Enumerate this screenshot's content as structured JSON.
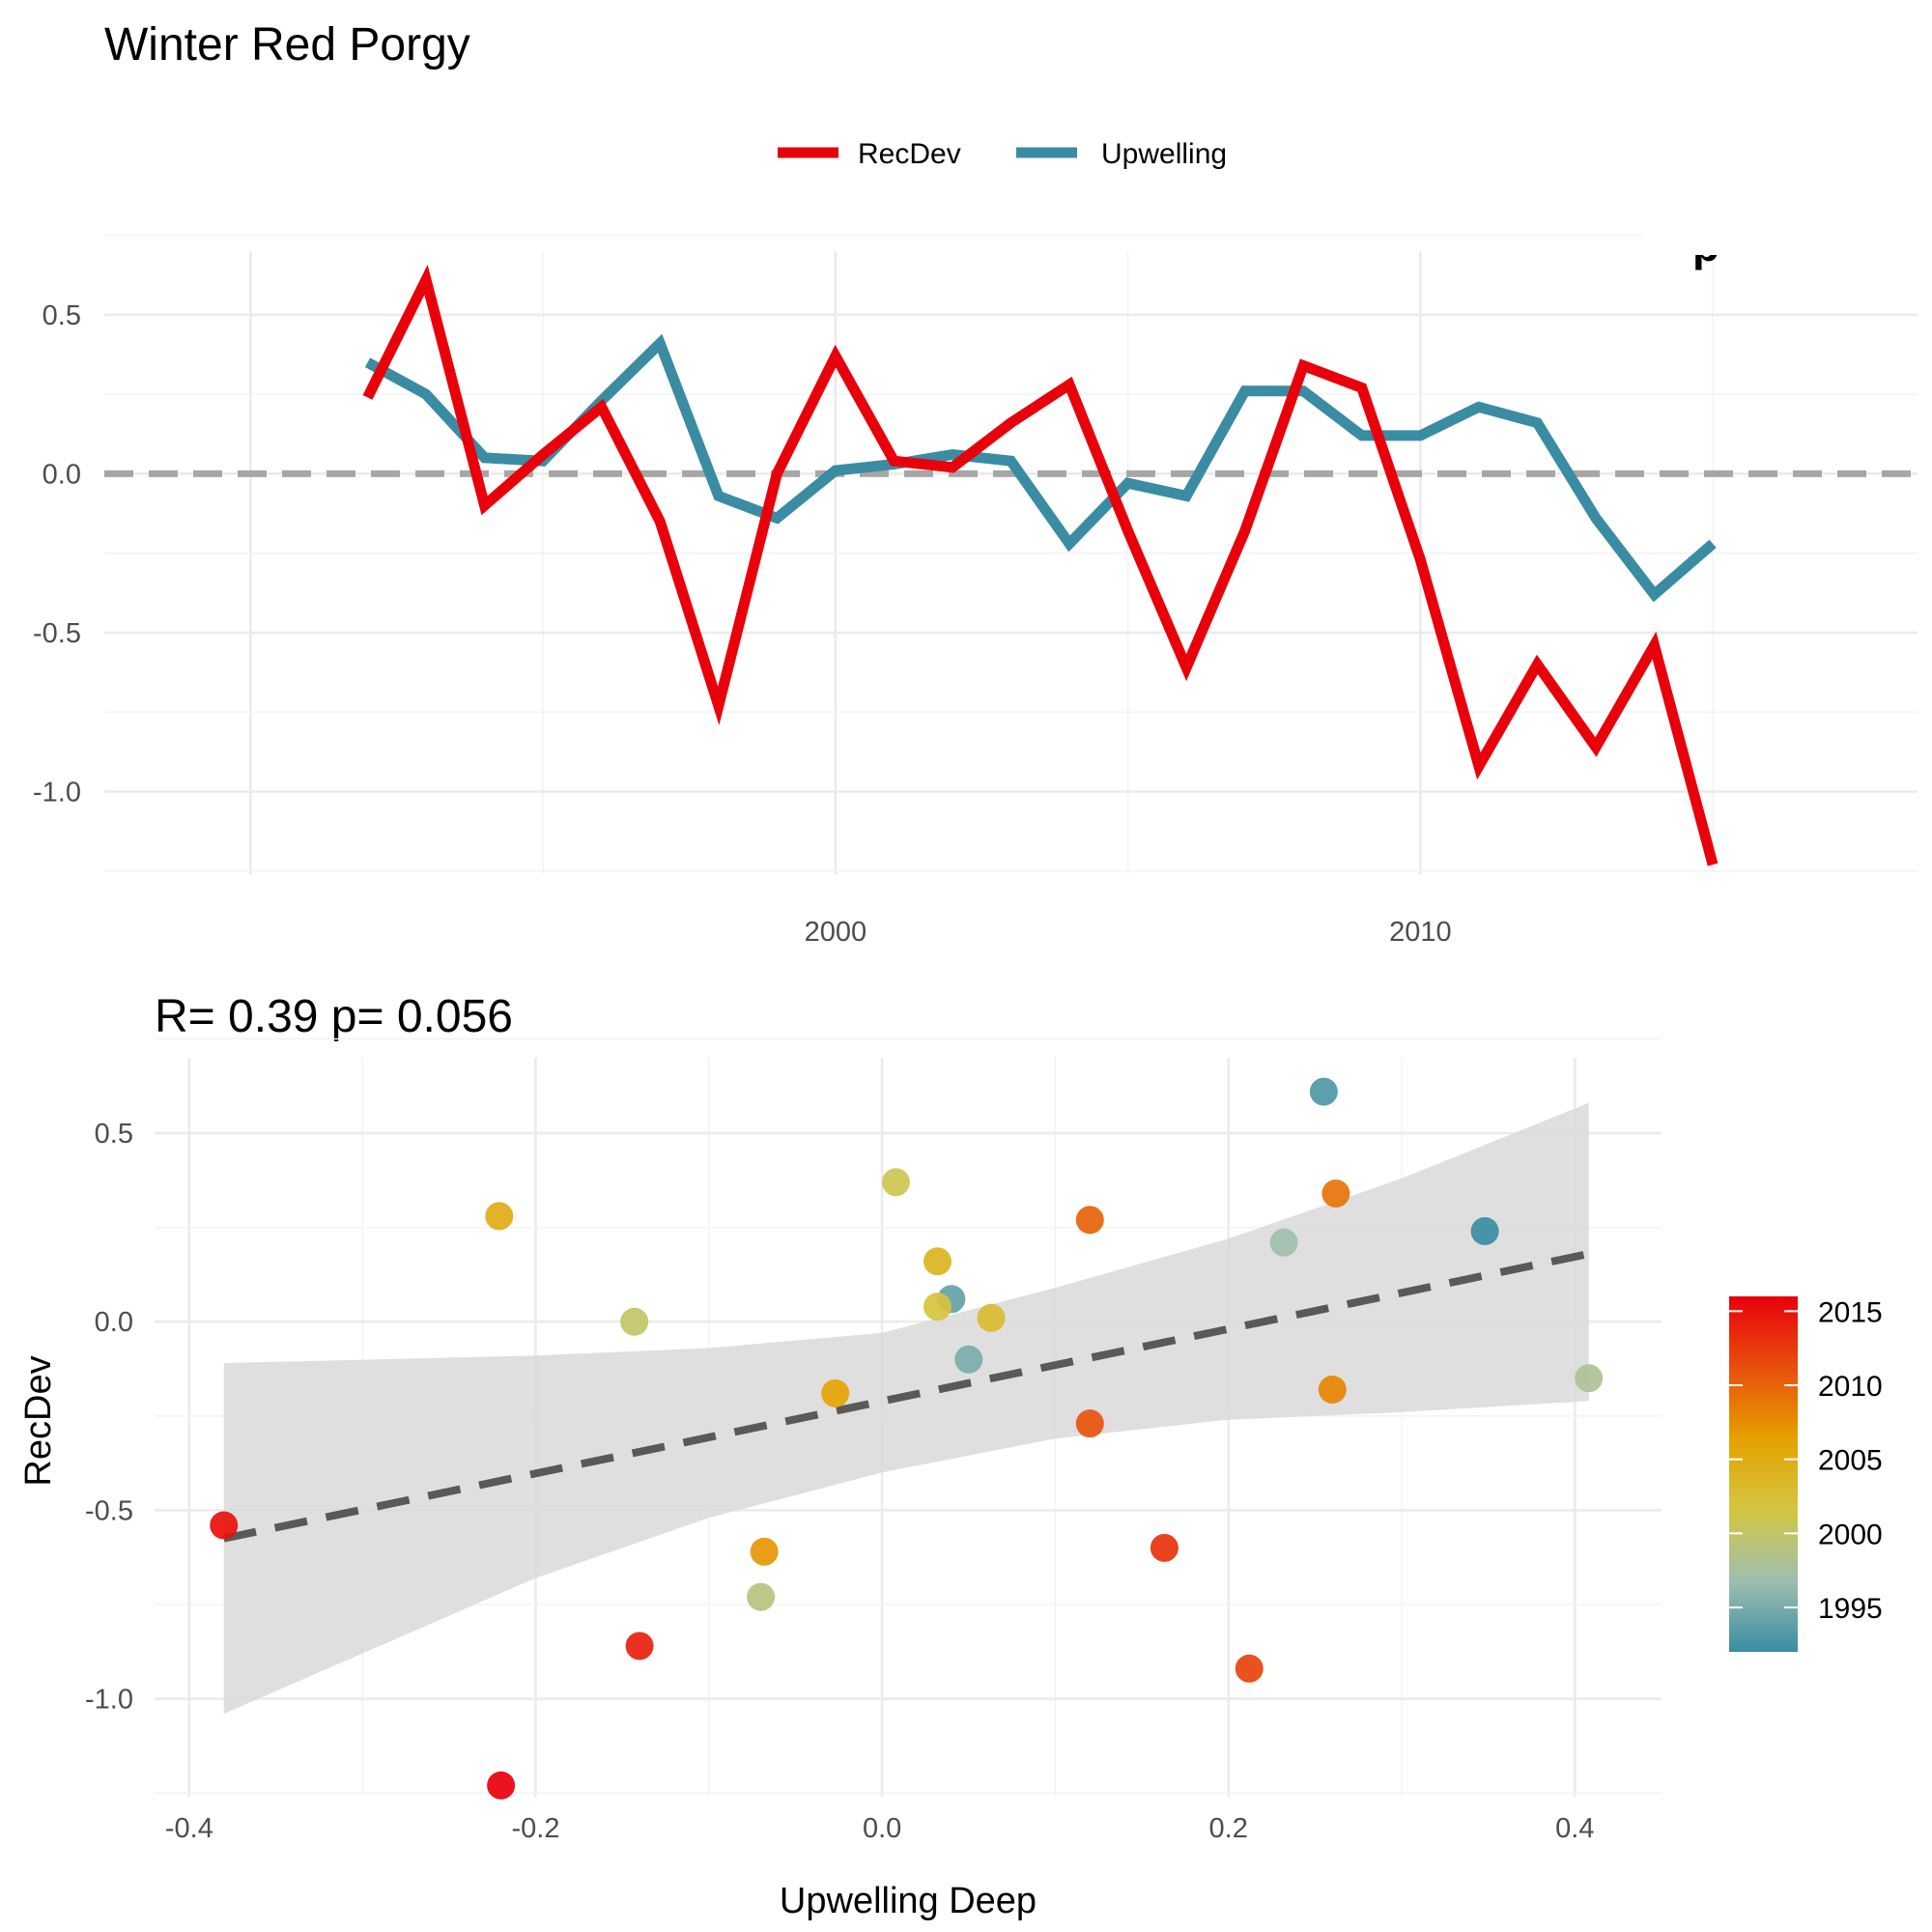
{
  "title": "Winter  Red Porgy",
  "chart_data": [
    {
      "type": "line",
      "title": "Winter  Red Porgy",
      "x": [
        1992,
        1993,
        1994,
        1995,
        1996,
        1997,
        1998,
        1999,
        2000,
        2001,
        2002,
        2003,
        2004,
        2005,
        2006,
        2007,
        2008,
        2009,
        2010,
        2011,
        2012,
        2013,
        2014,
        2015,
        2016
      ],
      "series": [
        {
          "name": "RecDev",
          "color": "#e8000b",
          "values": [
            0.24,
            0.61,
            -0.1,
            0.06,
            0.21,
            -0.15,
            -0.73,
            0.0,
            0.37,
            0.04,
            0.02,
            0.16,
            0.28,
            -0.18,
            -0.61,
            -0.18,
            0.34,
            0.27,
            -0.27,
            -0.92,
            -0.6,
            -0.86,
            -0.54,
            -1.23,
            null
          ]
        },
        {
          "name": "Upwelling",
          "color": "#3a8ca3",
          "values": [
            0.35,
            0.25,
            0.05,
            0.04,
            0.23,
            0.41,
            -0.07,
            -0.14,
            0.01,
            0.03,
            0.06,
            0.04,
            -0.22,
            -0.03,
            -0.07,
            0.26,
            0.26,
            0.12,
            0.12,
            0.21,
            0.16,
            -0.14,
            -0.38,
            -0.22,
            null
          ]
        }
      ],
      "xlim": [
        1987.5,
        2018.5
      ],
      "ylim": [
        -1.26,
        0.7
      ],
      "xticks": [
        "2000",
        "2010"
      ],
      "yticks": [
        "0.5",
        "0.0",
        "-0.5",
        "-1.0"
      ],
      "reference_line": 0,
      "legend": "top",
      "corner_text": "p"
    },
    {
      "type": "scatter",
      "title": "R= 0.39  p= 0.056",
      "xlabel": "Upwelling Deep",
      "ylabel": "RecDev",
      "xlim": [
        -0.42,
        0.45
      ],
      "ylim": [
        -1.26,
        0.7
      ],
      "xticks": [
        "-0.4",
        "-0.2",
        "0.0",
        "0.2",
        "0.4"
      ],
      "yticks": [
        "0.5",
        "0.0",
        "-0.5",
        "-1.0"
      ],
      "grid": true,
      "points": [
        {
          "x": 0.255,
          "y": 0.61,
          "year": 1993
        },
        {
          "x": 0.348,
          "y": 0.24,
          "year": 1992
        },
        {
          "x": 0.232,
          "y": 0.21,
          "year": 1997
        },
        {
          "x": 0.408,
          "y": -0.15,
          "year": 1998
        },
        {
          "x": 0.04,
          "y": 0.06,
          "year": 1994
        },
        {
          "x": 0.05,
          "y": -0.1,
          "year": 1995
        },
        {
          "x": 0.063,
          "y": 0.01,
          "year": 2003
        },
        {
          "x": 0.008,
          "y": 0.37,
          "year": 2001
        },
        {
          "x": 0.032,
          "y": 0.16,
          "year": 2004
        },
        {
          "x": 0.032,
          "y": 0.04,
          "year": 2002
        },
        {
          "x": -0.143,
          "y": 0.0,
          "year": 2000
        },
        {
          "x": -0.07,
          "y": -0.73,
          "year": 1999
        },
        {
          "x": -0.221,
          "y": 0.28,
          "year": 2005
        },
        {
          "x": -0.027,
          "y": -0.19,
          "year": 2006
        },
        {
          "x": -0.068,
          "y": -0.61,
          "year": 2007
        },
        {
          "x": 0.26,
          "y": -0.18,
          "year": 2008
        },
        {
          "x": 0.262,
          "y": 0.34,
          "year": 2009
        },
        {
          "x": 0.12,
          "y": 0.27,
          "year": 2010
        },
        {
          "x": 0.12,
          "y": -0.27,
          "year": 2011
        },
        {
          "x": 0.163,
          "y": -0.6,
          "year": 2013
        },
        {
          "x": 0.212,
          "y": -0.92,
          "year": 2012
        },
        {
          "x": -0.14,
          "y": -0.86,
          "year": 2014
        },
        {
          "x": -0.38,
          "y": -0.54,
          "year": 2015
        },
        {
          "x": -0.22,
          "y": -1.23,
          "year": 2016
        }
      ],
      "trend": {
        "x": [
          -0.38,
          0.408
        ],
        "y": [
          -0.575,
          0.18
        ],
        "linetype": "dashed",
        "color": "#595959"
      },
      "confidence_band": {
        "x": [
          -0.38,
          -0.2,
          -0.1,
          0.0,
          0.1,
          0.2,
          0.3,
          0.408
        ],
        "lower": [
          -1.04,
          -0.68,
          -0.52,
          -0.4,
          -0.31,
          -0.26,
          -0.24,
          -0.21
        ],
        "upper": [
          -0.11,
          -0.09,
          -0.07,
          -0.03,
          0.09,
          0.22,
          0.38,
          0.58
        ]
      },
      "colorbar": {
        "title": "",
        "range": [
          1992,
          2016
        ],
        "ticks": [
          "2015",
          "2010",
          "2005",
          "2000",
          "1995"
        ],
        "colors": [
          "#3a8ca3",
          "#9ebfb0",
          "#d4c642",
          "#e6a000",
          "#e84f0d",
          "#e8000b"
        ]
      }
    }
  ]
}
